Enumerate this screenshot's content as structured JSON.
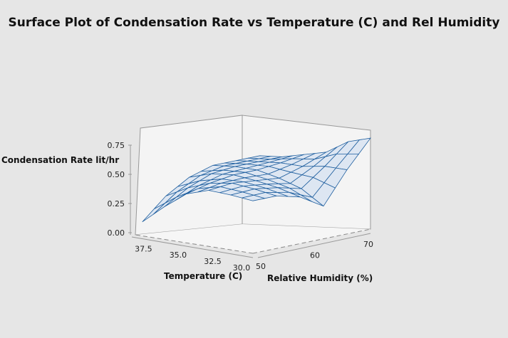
{
  "chart_data": {
    "type": "surface",
    "title": "Surface Plot of Condensation Rate vs Temperature (C) and Rel Humidity",
    "xlabel": "Temperature (C)",
    "ylabel": "Relative Humidity (%)",
    "zlabel": "Condensation Rate lit/hr",
    "x_ticks": [
      "37.5",
      "35.0",
      "32.5",
      "30.0"
    ],
    "y_ticks": [
      "50",
      "60",
      "70"
    ],
    "z_ticks": [
      "0.00",
      "0.25",
      "0.50",
      "0.75"
    ],
    "xlim": [
      30,
      38.5
    ],
    "ylim": [
      50,
      72
    ],
    "zlim": [
      0,
      0.85
    ],
    "x": [
      30,
      31.6,
      33.2,
      34.8,
      36.4,
      38
    ],
    "y": [
      50,
      54.4,
      58.8,
      63.2,
      67.6,
      72
    ],
    "z": [
      [
        0.45,
        0.45,
        0.4,
        0.28,
        0.55,
        0.78
      ],
      [
        0.47,
        0.48,
        0.45,
        0.4,
        0.55,
        0.72
      ],
      [
        0.48,
        0.5,
        0.48,
        0.46,
        0.52,
        0.6
      ],
      [
        0.42,
        0.47,
        0.5,
        0.5,
        0.52,
        0.55
      ],
      [
        0.28,
        0.4,
        0.48,
        0.5,
        0.5,
        0.5
      ],
      [
        0.12,
        0.3,
        0.42,
        0.48,
        0.48,
        0.48
      ]
    ],
    "mesh_color": "#1f5f9f",
    "surface_fill": "#dde6f2"
  }
}
